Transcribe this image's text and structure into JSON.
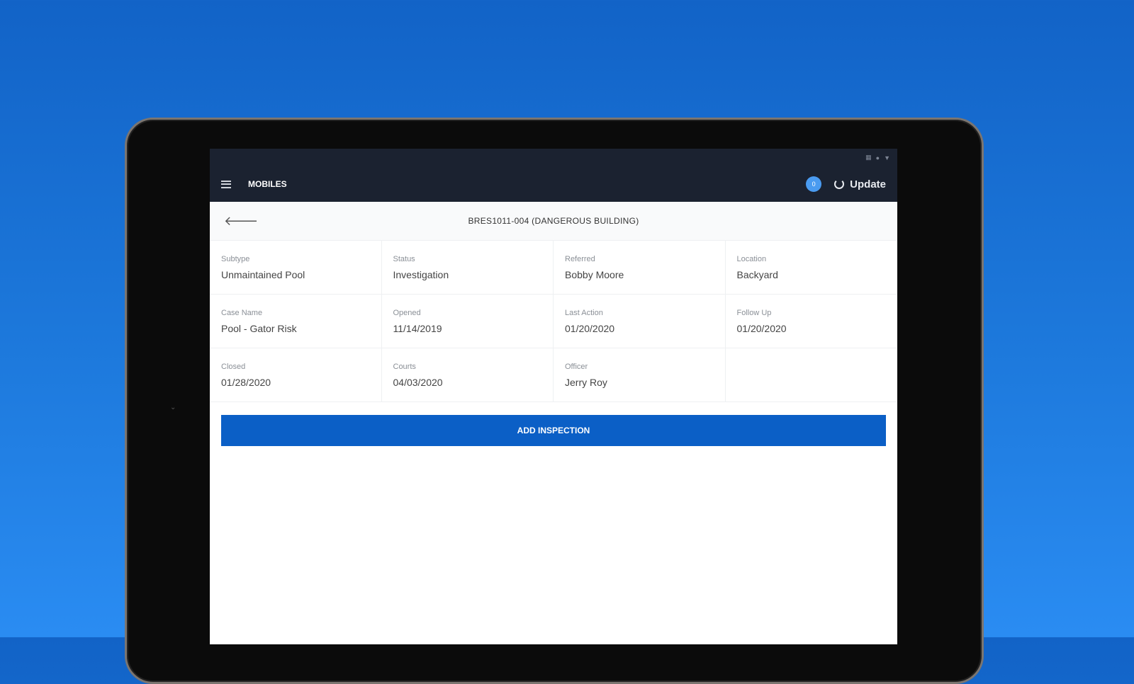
{
  "app": {
    "name": "MOBILES",
    "badge": "0",
    "update_label": "Update"
  },
  "case": {
    "title": "BRES1011-004 (DANGEROUS BUILDING)"
  },
  "fields": [
    {
      "label": "Subtype",
      "value": "Unmaintained Pool"
    },
    {
      "label": "Status",
      "value": "Investigation"
    },
    {
      "label": "Referred",
      "value": "Bobby Moore"
    },
    {
      "label": "Location",
      "value": "Backyard"
    },
    {
      "label": "Case Name",
      "value": "Pool - Gator Risk"
    },
    {
      "label": "Opened",
      "value": "11/14/2019"
    },
    {
      "label": "Last Action",
      "value": "01/20/2020"
    },
    {
      "label": "Follow Up",
      "value": "01/20/2020"
    },
    {
      "label": "Closed",
      "value": "01/28/2020"
    },
    {
      "label": "Courts",
      "value": "04/03/2020"
    },
    {
      "label": "Officer",
      "value": "Jerry Roy"
    },
    {
      "label": "",
      "value": ""
    }
  ],
  "actions": {
    "add_inspection": "ADD INSPECTION"
  }
}
